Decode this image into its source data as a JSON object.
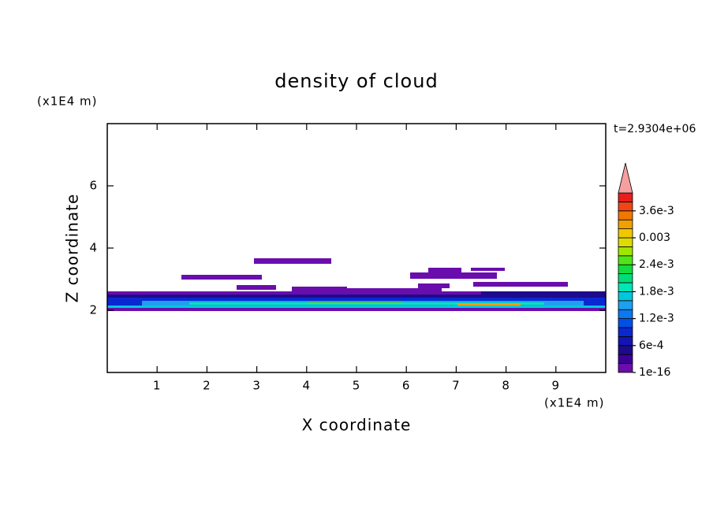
{
  "chart_data": {
    "type": "contour",
    "title": "density of cloud",
    "x_label": "X coordinate",
    "y_label": "Z coordinate",
    "x_unit": "(x1E4 m)",
    "y_unit": "(x1E4 m)",
    "time_label": "t=2.9304e+06",
    "xlim": [
      0,
      10
    ],
    "xticks": [
      1,
      2,
      3,
      4,
      5,
      6,
      7,
      8,
      9
    ],
    "ylim": [
      0,
      8
    ],
    "yticks": [
      2,
      4,
      6
    ],
    "colorbar": {
      "clim": [
        1e-16,
        0.004
      ],
      "ticks": [
        {
          "value": 1e-16,
          "label": "1e-16"
        },
        {
          "value": 0.0006,
          "label": "6e-4"
        },
        {
          "value": 0.0012,
          "label": "1.2e-3"
        },
        {
          "value": 0.0018,
          "label": "1.8e-3"
        },
        {
          "value": 0.0024,
          "label": "2.4e-3"
        },
        0.003,
        {
          "value": 0.0036,
          "label": "3.6e-3"
        }
      ],
      "colors": [
        "#6a0dad",
        "#3c0096",
        "#1e0a8c",
        "#1414b4",
        "#0a28d2",
        "#0050e6",
        "#0a78f0",
        "#1ea0f0",
        "#00c8dc",
        "#00e6b4",
        "#00dc78",
        "#14dc3c",
        "#50e614",
        "#a0e600",
        "#dcdc00",
        "#f0c800",
        "#f0a000",
        "#f07800",
        "#f04614",
        "#e61e1e"
      ],
      "over_color": "#f4a0a0"
    }
  }
}
